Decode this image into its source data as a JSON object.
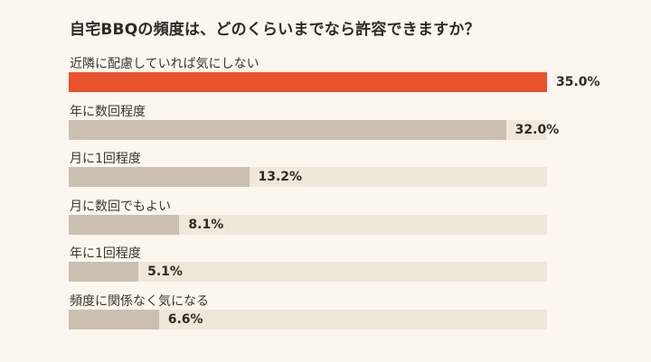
{
  "chart_data": {
    "type": "bar",
    "orientation": "horizontal",
    "title": "自宅BBQの頻度は、どのくらいまでなら許容できますか？",
    "categories": [
      "近隣に配慮していれば気にしない",
      "年に数回程度",
      "月に1回程度",
      "月に数回でもよい",
      "年に1回程度",
      "頻度に関係なく気になる"
    ],
    "values": [
      35.0,
      32.0,
      13.2,
      8.1,
      5.1,
      6.6
    ],
    "value_labels": [
      "35.0%",
      "32.0%",
      "13.2%",
      "8.1%",
      "5.1%",
      "6.6%"
    ],
    "xlim": [
      0,
      35.0
    ],
    "colors": {
      "highlight": "#e8532d",
      "default": "#cbbfb2",
      "track": "#f0e7db",
      "background": "#fcf6ee"
    }
  }
}
